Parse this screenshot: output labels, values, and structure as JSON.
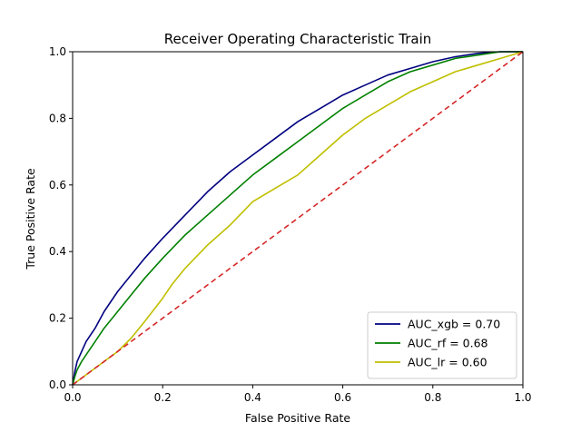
{
  "chart_data": {
    "type": "line",
    "title": "Receiver Operating Characteristic Train",
    "xlabel": "False Positive Rate",
    "ylabel": "True Positive Rate",
    "xlim": [
      0.0,
      1.0
    ],
    "ylim": [
      0.0,
      1.0
    ],
    "xticks": [
      "0.0",
      "0.2",
      "0.4",
      "0.6",
      "0.8",
      "1.0"
    ],
    "yticks": [
      "0.0",
      "0.2",
      "0.4",
      "0.6",
      "0.8",
      "1.0"
    ],
    "grid": false,
    "legend_position": "lower-right",
    "series": [
      {
        "name": "AUC_xgb = 0.70",
        "color": "#000080",
        "x": [
          0.0,
          0.005,
          0.01,
          0.02,
          0.03,
          0.05,
          0.07,
          0.1,
          0.13,
          0.16,
          0.2,
          0.25,
          0.3,
          0.35,
          0.4,
          0.45,
          0.5,
          0.55,
          0.6,
          0.65,
          0.7,
          0.75,
          0.8,
          0.85,
          0.9,
          0.95,
          1.0
        ],
        "y": [
          0.0,
          0.04,
          0.07,
          0.1,
          0.13,
          0.17,
          0.22,
          0.28,
          0.33,
          0.38,
          0.44,
          0.51,
          0.58,
          0.64,
          0.69,
          0.74,
          0.79,
          0.83,
          0.87,
          0.9,
          0.93,
          0.95,
          0.97,
          0.985,
          0.995,
          1.0,
          1.0
        ]
      },
      {
        "name": "AUC_rf = 0.68",
        "color": "#008000",
        "x": [
          0.0,
          0.005,
          0.01,
          0.02,
          0.03,
          0.05,
          0.07,
          0.1,
          0.13,
          0.16,
          0.2,
          0.25,
          0.3,
          0.35,
          0.4,
          0.45,
          0.5,
          0.55,
          0.6,
          0.65,
          0.7,
          0.75,
          0.8,
          0.85,
          0.9,
          0.95,
          1.0
        ],
        "y": [
          0.0,
          0.025,
          0.045,
          0.07,
          0.09,
          0.13,
          0.17,
          0.22,
          0.27,
          0.32,
          0.38,
          0.45,
          0.51,
          0.57,
          0.63,
          0.68,
          0.73,
          0.78,
          0.83,
          0.87,
          0.91,
          0.94,
          0.96,
          0.98,
          0.99,
          1.0,
          1.0
        ]
      },
      {
        "name": "AUC_lr = 0.60",
        "color": "#bfbf00",
        "x": [
          0.0,
          0.02,
          0.05,
          0.08,
          0.1,
          0.13,
          0.16,
          0.2,
          0.22,
          0.25,
          0.3,
          0.35,
          0.4,
          0.45,
          0.5,
          0.55,
          0.6,
          0.65,
          0.7,
          0.75,
          0.8,
          0.85,
          0.9,
          0.95,
          1.0
        ],
        "y": [
          0.0,
          0.02,
          0.05,
          0.08,
          0.1,
          0.14,
          0.19,
          0.26,
          0.3,
          0.35,
          0.42,
          0.48,
          0.55,
          0.59,
          0.63,
          0.69,
          0.75,
          0.8,
          0.84,
          0.88,
          0.91,
          0.94,
          0.96,
          0.98,
          1.0
        ]
      },
      {
        "name": "",
        "color": "#d62728",
        "dashed": true,
        "x": [
          0.0,
          1.0
        ],
        "y": [
          0.0,
          1.0
        ]
      }
    ]
  }
}
